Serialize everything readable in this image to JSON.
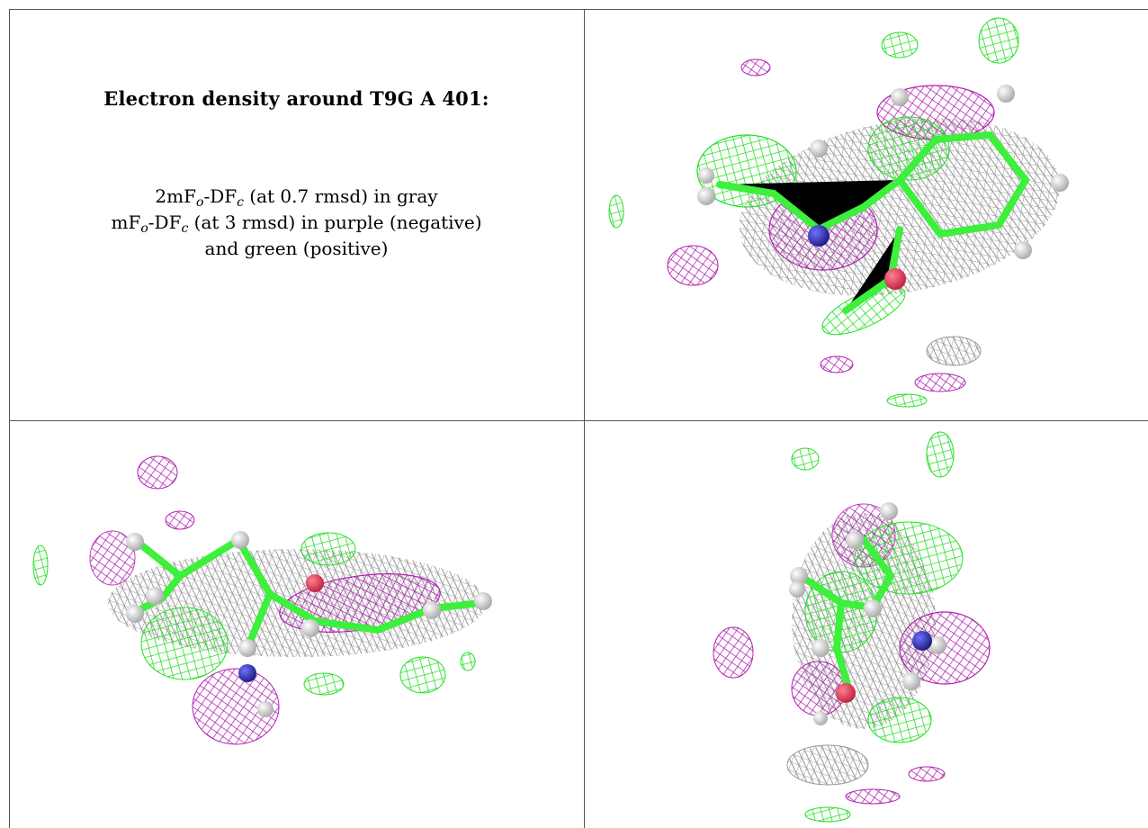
{
  "figure": {
    "title": "Electron density around T9G A 401:",
    "legend_lines": [
      [
        "2mF",
        "o",
        "-DF",
        "c",
        " (at 0.7 rmsd) in gray"
      ],
      [
        "mF",
        "o",
        "-DF",
        "c",
        " (at 3 rmsd) in purple (negative)"
      ],
      [
        "and green (positive)"
      ]
    ]
  }
}
